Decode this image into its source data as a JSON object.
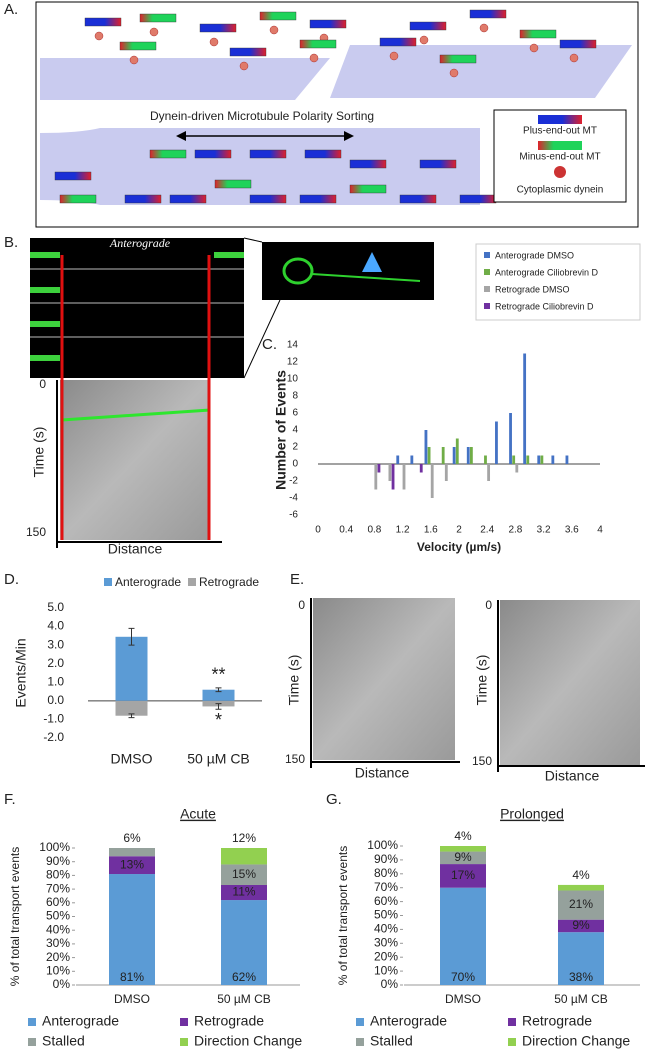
{
  "panel_labels": [
    "A.",
    "B.",
    "C.",
    "D.",
    "E.",
    "F.",
    "G."
  ],
  "panel_a": {
    "title": "Dynein-driven Microtubule Polarity Sorting",
    "legend": [
      "Plus-end-out MT",
      "Minus-end-out MT",
      "Cytoplasmic dynein"
    ]
  },
  "panel_b": {
    "image_label": "Anterograde",
    "time_start": "0",
    "time_end": "150",
    "y_label": "Time (s)",
    "x_label": "Distance"
  },
  "panel_e": {
    "kymographs": [
      {
        "time_start": "0",
        "time_end": "150",
        "y_label": "Time (s)",
        "x_label": "Distance"
      },
      {
        "time_start": "0",
        "time_end": "150",
        "y_label": "Time (s)",
        "x_label": "Distance"
      }
    ]
  },
  "chart_data": [
    {
      "type": "bar",
      "y_label": "Number of Events",
      "x_label": "Velocity (µm/s)",
      "x": [
        0.8,
        1.0,
        1.2,
        1.4,
        1.6,
        1.8,
        2.0,
        2.2,
        2.4,
        2.6,
        2.8,
        3.0,
        3.2,
        3.4,
        3.6
      ],
      "series": [
        {
          "name": "Anterograde DMSO",
          "color": "#4472c4",
          "values": [
            0,
            0,
            1,
            1,
            4,
            0,
            2,
            2,
            0,
            5,
            6,
            13,
            1,
            1,
            1
          ]
        },
        {
          "name": "Anterograde Ciliobrevin D",
          "color": "#70ad47",
          "values": [
            0,
            0,
            0,
            0,
            2,
            2,
            3,
            2,
            1,
            0,
            1,
            1,
            1,
            0,
            0
          ]
        },
        {
          "name": "Retrograde DMSO",
          "color": "#a5a5a5",
          "values": [
            -3,
            -2,
            -3,
            0,
            -4,
            -2,
            0,
            0,
            -2,
            0,
            -1,
            0,
            0,
            0,
            0
          ]
        },
        {
          "name": "Retrograde Ciliobrevin D",
          "color": "#7030a0",
          "values": [
            -1,
            -3,
            0,
            -1,
            0,
            0,
            0,
            0,
            0,
            0,
            0,
            0,
            0,
            0,
            0
          ]
        }
      ],
      "xlim": [
        0,
        4
      ],
      "xticks": [
        0,
        0.4,
        0.8,
        1.2,
        1.6,
        2,
        2.4,
        2.8,
        3.2,
        3.6,
        4
      ],
      "ylim": [
        -6,
        14
      ],
      "yticks": [
        -6,
        -4,
        -2,
        0,
        2,
        4,
        6,
        8,
        10,
        12,
        14
      ],
      "legend": "top-right"
    },
    {
      "type": "bar",
      "y_label": "Events/Min",
      "categories": [
        "DMSO",
        "50 µM CB"
      ],
      "series": [
        {
          "name": "Anterograde",
          "color": "#5b9bd5",
          "values": [
            3.45,
            0.6
          ],
          "errors": [
            0.45,
            0.1
          ]
        },
        {
          "name": "Retrograde",
          "color": "#a5a5a5",
          "values": [
            -0.8,
            -0.3
          ],
          "errors": [
            0.1,
            0.15
          ]
        }
      ],
      "annotations": [
        "**",
        "*"
      ],
      "ylim": [
        -2,
        5
      ],
      "yticks": [
        {
          "value": -2,
          "label": "-2.0"
        },
        {
          "value": -1,
          "label": "-1.0"
        },
        {
          "value": 0,
          "label": "0.0"
        },
        {
          "value": 1,
          "label": "1.0"
        },
        {
          "value": 2,
          "label": "2.0"
        },
        {
          "value": 3,
          "label": "3.0"
        },
        {
          "value": 4,
          "label": "4.0"
        },
        {
          "value": 5,
          "label": "5.0"
        }
      ],
      "legend": "top"
    },
    {
      "type": "stacked_bar",
      "title": "Acute",
      "y_label": "% of total transport events",
      "categories": [
        "DMSO",
        "50 µM CB"
      ],
      "series": [
        {
          "name": "Anterograde",
          "color": "#5b9bd5",
          "values": [
            81,
            62
          ],
          "value_labels": [
            "81%",
            "62%"
          ]
        },
        {
          "name": "Retrograde",
          "color": "#7030a0",
          "values": [
            13,
            11
          ],
          "value_labels": [
            "13%",
            "11%"
          ]
        },
        {
          "name": "Stalled",
          "color": "#95a19c",
          "values": [
            6,
            15
          ],
          "value_labels": [
            "6%",
            "15%"
          ]
        },
        {
          "name": "Direction Change",
          "color": "#92d050",
          "values": [
            0,
            12
          ],
          "value_labels": [
            null,
            "12%"
          ]
        }
      ],
      "ylim": [
        0,
        100
      ],
      "yticks": [
        {
          "value": 0,
          "label": "0%"
        },
        {
          "value": 10,
          "label": "10%"
        },
        {
          "value": 20,
          "label": "20%"
        },
        {
          "value": 30,
          "label": "30%"
        },
        {
          "value": 40,
          "label": "40%"
        },
        {
          "value": 50,
          "label": "50%"
        },
        {
          "value": 60,
          "label": "60%"
        },
        {
          "value": 70,
          "label": "70%"
        },
        {
          "value": 80,
          "label": "80%"
        },
        {
          "value": 90,
          "label": "90%"
        },
        {
          "value": 100,
          "label": "100%"
        }
      ],
      "legend": "bottom"
    },
    {
      "type": "stacked_bar",
      "title": "Prolonged",
      "y_label": "% of total transport events",
      "categories": [
        "DMSO",
        "50 µM CB"
      ],
      "series": [
        {
          "name": "Anterograde",
          "color": "#5b9bd5",
          "values": [
            70,
            38
          ],
          "value_labels": [
            "70%",
            "38%"
          ]
        },
        {
          "name": "Retrograde",
          "color": "#7030a0",
          "values": [
            17,
            9
          ],
          "value_labels": [
            "17%",
            "9%"
          ]
        },
        {
          "name": "Stalled",
          "color": "#95a19c",
          "values": [
            9,
            21
          ],
          "value_labels": [
            "9%",
            "21%"
          ]
        },
        {
          "name": "Direction Change",
          "color": "#92d050",
          "values": [
            4,
            4
          ],
          "value_labels": [
            "4%",
            "4%"
          ]
        }
      ],
      "ylim": [
        0,
        100
      ],
      "yticks": [
        {
          "value": 0,
          "label": "0%"
        },
        {
          "value": 10,
          "label": "10%"
        },
        {
          "value": 20,
          "label": "20%"
        },
        {
          "value": 30,
          "label": "30%"
        },
        {
          "value": 40,
          "label": "40%"
        },
        {
          "value": 50,
          "label": "50%"
        },
        {
          "value": 60,
          "label": "60%"
        },
        {
          "value": 70,
          "label": "70%"
        },
        {
          "value": 80,
          "label": "80%"
        },
        {
          "value": 90,
          "label": "90%"
        },
        {
          "value": 100,
          "label": "100%"
        }
      ],
      "legend": "bottom"
    }
  ]
}
